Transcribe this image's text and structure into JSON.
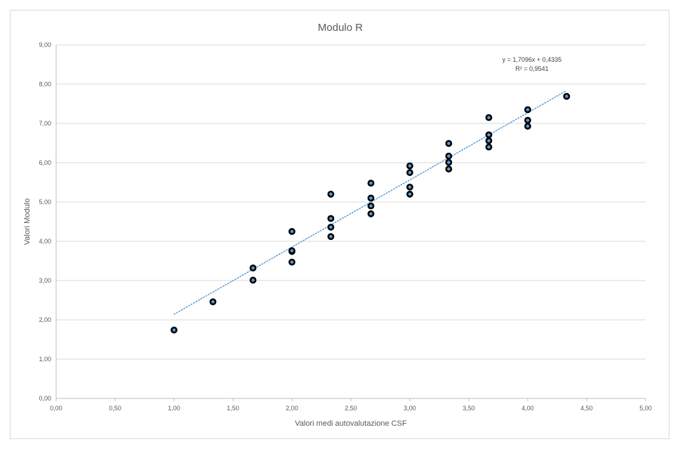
{
  "chart_data": {
    "type": "scatter",
    "title": "Modulo R",
    "xlabel": "Valori medi autovalutazione CSF",
    "ylabel": "Valori Modulo",
    "xlim": [
      0,
      5
    ],
    "ylim": [
      0,
      9
    ],
    "x_ticks": [
      "0,00",
      "0,50",
      "1,00",
      "1,50",
      "2,00",
      "2,50",
      "3,00",
      "3,50",
      "4,00",
      "4,50",
      "5,00"
    ],
    "y_ticks": [
      "0,00",
      "1,00",
      "2,00",
      "3,00",
      "4,00",
      "5,00",
      "6,00",
      "7,00",
      "8,00",
      "9,00"
    ],
    "grid": "horizontal",
    "marker_color": "#000000",
    "marker_fill": "#5b9bd5",
    "trendline": {
      "slope": 1.7096,
      "intercept": 0.4335,
      "x_range": [
        1.0,
        4.33
      ],
      "color": "#5b9bd5",
      "equation": "y = 1,7096x + 0,4335",
      "r2": "R² = 0,9541"
    },
    "points": [
      {
        "x": 1.0,
        "y": 1.74
      },
      {
        "x": 1.33,
        "y": 2.46
      },
      {
        "x": 1.67,
        "y": 3.01
      },
      {
        "x": 1.67,
        "y": 3.32
      },
      {
        "x": 2.0,
        "y": 3.47
      },
      {
        "x": 2.0,
        "y": 3.74
      },
      {
        "x": 2.0,
        "y": 3.76
      },
      {
        "x": 2.0,
        "y": 4.25
      },
      {
        "x": 2.33,
        "y": 4.12
      },
      {
        "x": 2.33,
        "y": 4.36
      },
      {
        "x": 2.33,
        "y": 4.58
      },
      {
        "x": 2.33,
        "y": 5.2
      },
      {
        "x": 2.67,
        "y": 4.7
      },
      {
        "x": 2.67,
        "y": 4.9
      },
      {
        "x": 2.67,
        "y": 5.1
      },
      {
        "x": 2.67,
        "y": 5.48
      },
      {
        "x": 3.0,
        "y": 5.2
      },
      {
        "x": 3.0,
        "y": 5.38
      },
      {
        "x": 3.0,
        "y": 5.75
      },
      {
        "x": 3.0,
        "y": 5.92
      },
      {
        "x": 3.33,
        "y": 5.84
      },
      {
        "x": 3.33,
        "y": 6.01
      },
      {
        "x": 3.33,
        "y": 6.17
      },
      {
        "x": 3.33,
        "y": 6.49
      },
      {
        "x": 3.67,
        "y": 6.4
      },
      {
        "x": 3.67,
        "y": 6.56
      },
      {
        "x": 3.67,
        "y": 6.71
      },
      {
        "x": 3.67,
        "y": 7.15
      },
      {
        "x": 4.0,
        "y": 6.93
      },
      {
        "x": 4.0,
        "y": 7.08
      },
      {
        "x": 4.0,
        "y": 7.35
      },
      {
        "x": 4.33,
        "y": 7.69
      }
    ]
  }
}
